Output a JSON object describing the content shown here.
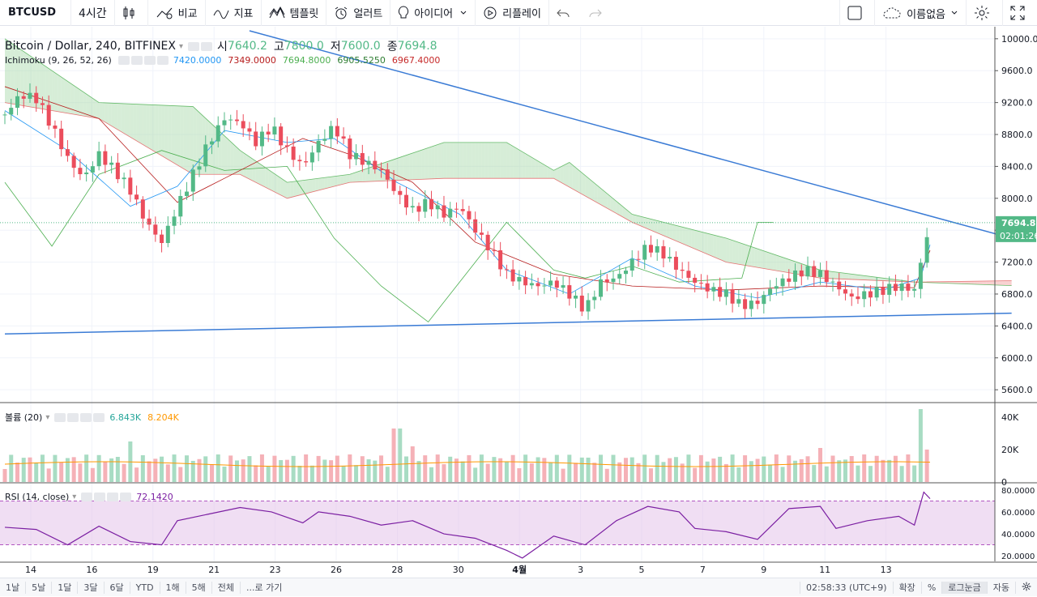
{
  "toolbar": {
    "symbol": "BTCUSD",
    "interval": "4시간",
    "compare": "비교",
    "indicators": "지표",
    "templates": "템플릿",
    "alert": "얼러트",
    "ideas": "아이디어",
    "replay": "리플레이",
    "layout_name": "이름없음"
  },
  "legends": {
    "main_title": "Bitcoin / Dollar, 240, BITFINEX",
    "open_label": "시",
    "open": "7640.2",
    "high_label": "고",
    "high": "7800.0",
    "low_label": "저",
    "low": "7600.0",
    "close_label": "종",
    "close": "7694.8",
    "ichimoku_title": "Ichimoku (9, 26, 52, 26)",
    "ichimoku_values": [
      "7420.0000",
      "7349.0000",
      "7694.8000",
      "6905.5250",
      "6967.4000"
    ],
    "volume_title": "볼륨 (20)",
    "volume_values": [
      "6.843K",
      "8.204K"
    ],
    "rsi_title": "RSI (14, close)",
    "rsi_value": "72.1420"
  },
  "chart_data": [
    {
      "type": "candlestick",
      "title": "Bitcoin / Dollar, 240, BITFINEX",
      "ylim": [
        5500,
        10100
      ],
      "y_ticks": [
        "10000.0",
        "9600.0",
        "9200.0",
        "8800.0",
        "8400.0",
        "8000.0",
        "7600.0",
        "7200.0",
        "6800.0",
        "6400.0",
        "6000.0",
        "5600.0"
      ],
      "last_price": "7694.8",
      "countdown": "02:01:26",
      "close_path": [
        [
          0,
          9050
        ],
        [
          5,
          9300
        ],
        [
          10,
          9250
        ],
        [
          15,
          8900
        ],
        [
          20,
          8500
        ],
        [
          25,
          8250
        ],
        [
          30,
          8550
        ],
        [
          35,
          8350
        ],
        [
          40,
          8100
        ],
        [
          45,
          7700
        ],
        [
          50,
          7450
        ],
        [
          55,
          7900
        ],
        [
          60,
          8300
        ],
        [
          65,
          8700
        ],
        [
          70,
          9000
        ],
        [
          75,
          8950
        ],
        [
          80,
          8700
        ],
        [
          85,
          8900
        ],
        [
          90,
          8600
        ],
        [
          95,
          8400
        ],
        [
          100,
          8700
        ],
        [
          105,
          8900
        ],
        [
          110,
          8550
        ],
        [
          115,
          8450
        ],
        [
          120,
          8350
        ],
        [
          125,
          8050
        ],
        [
          130,
          7850
        ],
        [
          135,
          7950
        ],
        [
          140,
          7800
        ],
        [
          145,
          7900
        ],
        [
          150,
          7600
        ],
        [
          155,
          7350
        ],
        [
          160,
          7050
        ],
        [
          165,
          6950
        ],
        [
          170,
          6900
        ],
        [
          175,
          6950
        ],
        [
          180,
          6800
        ],
        [
          185,
          6600
        ],
        [
          190,
          6950
        ],
        [
          195,
          7000
        ],
        [
          200,
          7200
        ],
        [
          205,
          7400
        ],
        [
          210,
          7300
        ],
        [
          215,
          7100
        ],
        [
          220,
          6950
        ],
        [
          225,
          6850
        ],
        [
          230,
          6800
        ],
        [
          235,
          6650
        ],
        [
          240,
          6700
        ],
        [
          245,
          6900
        ],
        [
          250,
          7000
        ],
        [
          255,
          7100
        ],
        [
          260,
          7050
        ],
        [
          265,
          6900
        ],
        [
          270,
          6750
        ],
        [
          275,
          6800
        ],
        [
          280,
          6850
        ],
        [
          285,
          6900
        ],
        [
          290,
          6850
        ],
        [
          295,
          7700
        ]
      ],
      "ichimoku": {
        "tenkan": [
          [
            0,
            9100
          ],
          [
            20,
            8600
          ],
          [
            40,
            7900
          ],
          [
            55,
            8150
          ],
          [
            70,
            8850
          ],
          [
            90,
            8700
          ],
          [
            105,
            8750
          ],
          [
            125,
            8200
          ],
          [
            145,
            7800
          ],
          [
            160,
            7100
          ],
          [
            180,
            6800
          ],
          [
            200,
            7250
          ],
          [
            220,
            6900
          ],
          [
            240,
            6750
          ],
          [
            260,
            6950
          ],
          [
            280,
            6850
          ],
          [
            292,
            7000
          ],
          [
            295,
            7420
          ]
        ],
        "kijun": [
          [
            0,
            9400
          ],
          [
            30,
            9000
          ],
          [
            55,
            7950
          ],
          [
            70,
            8250
          ],
          [
            95,
            8750
          ],
          [
            110,
            8550
          ],
          [
            130,
            8200
          ],
          [
            150,
            7450
          ],
          [
            175,
            7050
          ],
          [
            200,
            6900
          ],
          [
            230,
            6850
          ],
          [
            260,
            6900
          ],
          [
            290,
            6880
          ],
          [
            295,
            7349
          ]
        ],
        "chikou": [
          [
            0,
            8200
          ],
          [
            15,
            7400
          ],
          [
            30,
            8300
          ],
          [
            50,
            8600
          ],
          [
            70,
            8350
          ],
          [
            90,
            8400
          ],
          [
            105,
            7500
          ],
          [
            120,
            6900
          ],
          [
            135,
            6450
          ],
          [
            150,
            7200
          ],
          [
            160,
            7700
          ],
          [
            175,
            7100
          ],
          [
            185,
            7000
          ],
          [
            200,
            7150
          ],
          [
            215,
            6950
          ],
          [
            235,
            7000
          ],
          [
            240,
            7700
          ],
          [
            245,
            7700
          ]
        ],
        "span_a": [
          [
            0,
            10000
          ],
          [
            30,
            9200
          ],
          [
            60,
            9150
          ],
          [
            75,
            8600
          ],
          [
            90,
            8200
          ],
          [
            110,
            8300
          ],
          [
            125,
            8500
          ],
          [
            140,
            8700
          ],
          [
            160,
            8700
          ],
          [
            175,
            8350
          ],
          [
            180,
            8450
          ],
          [
            200,
            7800
          ],
          [
            230,
            7500
          ],
          [
            260,
            7100
          ],
          [
            290,
            6950
          ],
          [
            321,
            6905
          ]
        ],
        "span_b": [
          [
            0,
            9200
          ],
          [
            30,
            9000
          ],
          [
            60,
            8300
          ],
          [
            75,
            8300
          ],
          [
            90,
            8000
          ],
          [
            110,
            8200
          ],
          [
            140,
            8250
          ],
          [
            175,
            8250
          ],
          [
            200,
            7700
          ],
          [
            230,
            7200
          ],
          [
            260,
            7000
          ],
          [
            290,
            6950
          ],
          [
            321,
            6967
          ]
        ]
      },
      "trendlines": [
        {
          "from": [
            78,
            10100
          ],
          "to": [
            321,
            7500
          ]
        },
        {
          "from": [
            0,
            6300
          ],
          "to": [
            321,
            6560
          ]
        }
      ]
    },
    {
      "type": "bar",
      "title": "볼륨 (20)",
      "ylim": [
        0,
        45000
      ],
      "y_ticks": [
        "40K",
        "20K",
        "0"
      ],
      "spikes": [
        [
          40,
          25000
        ],
        [
          125,
          33000
        ],
        [
          130,
          22000
        ],
        [
          260,
          21000
        ],
        [
          293,
          45000
        ],
        [
          295,
          20000
        ]
      ],
      "values_level": 8000
    },
    {
      "type": "line",
      "title": "RSI (14, close)",
      "ylim": [
        15,
        85
      ],
      "y_ticks": [
        "80.0000",
        "60.0000",
        "40.0000",
        "20.0000"
      ],
      "band": [
        30,
        70
      ],
      "values": [
        [
          0,
          46
        ],
        [
          10,
          44
        ],
        [
          20,
          30
        ],
        [
          30,
          47
        ],
        [
          40,
          33
        ],
        [
          50,
          30
        ],
        [
          55,
          52
        ],
        [
          65,
          58
        ],
        [
          75,
          64
        ],
        [
          85,
          60
        ],
        [
          95,
          50
        ],
        [
          100,
          60
        ],
        [
          110,
          56
        ],
        [
          120,
          48
        ],
        [
          130,
          52
        ],
        [
          140,
          40
        ],
        [
          150,
          36
        ],
        [
          160,
          25
        ],
        [
          165,
          18
        ],
        [
          175,
          38
        ],
        [
          185,
          30
        ],
        [
          195,
          52
        ],
        [
          205,
          65
        ],
        [
          215,
          60
        ],
        [
          220,
          45
        ],
        [
          230,
          42
        ],
        [
          240,
          35
        ],
        [
          250,
          63
        ],
        [
          260,
          65
        ],
        [
          265,
          45
        ],
        [
          275,
          52
        ],
        [
          285,
          56
        ],
        [
          290,
          48
        ],
        [
          293,
          78
        ],
        [
          295,
          72
        ]
      ]
    }
  ],
  "x_axis": {
    "ticks": [
      "14",
      "16",
      "19",
      "21",
      "23",
      "26",
      "28",
      "30",
      "4월",
      "3",
      "5",
      "7",
      "9",
      "11",
      "13"
    ]
  },
  "bottom": {
    "ranges": [
      "1날",
      "5날",
      "1달",
      "3달",
      "6달",
      "YTD",
      "1해",
      "5해",
      "전체"
    ],
    "goto": "...로 가기",
    "time": "02:58:33 (UTC+9)",
    "extended": "확장",
    "percent": "%",
    "log": "로그눈금",
    "auto": "자동"
  },
  "colors": {
    "up": "#53b987",
    "down": "#eb4d5c",
    "tenkan": "#2196f3",
    "kijun": "#b71c1c",
    "chikou": "#4caf50",
    "cloud_up": "#a5d6a7",
    "cloud_down": "#ef9a9a",
    "trend": "#3a7bd5",
    "rsi": "#7b1fa2",
    "last_price_bg": "#53b987"
  }
}
